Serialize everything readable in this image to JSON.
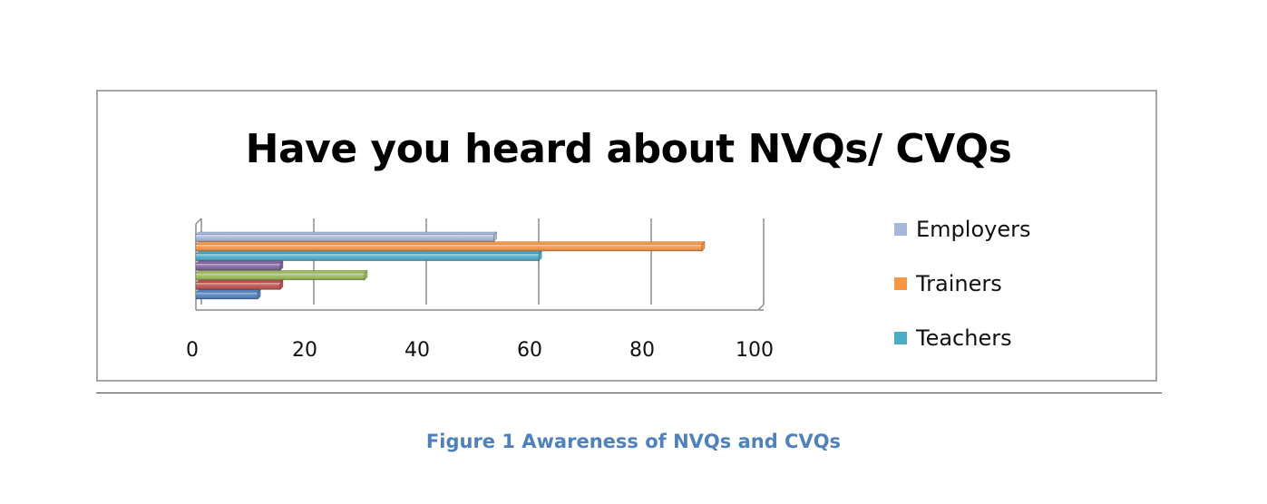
{
  "chart_data": {
    "type": "bar",
    "orientation": "horizontal",
    "style": "3d-clustered",
    "title": "Have you heard about NVQs/ CVQs",
    "xlim": [
      0,
      100
    ],
    "x_ticks": [
      "0",
      "20",
      "40",
      "60",
      "80",
      "100"
    ],
    "grid": true,
    "legend_position": "right",
    "series": [
      {
        "name": "",
        "value": 11,
        "color": "#4f81bd"
      },
      {
        "name": "",
        "value": 15,
        "color": "#c0504d"
      },
      {
        "name": "",
        "value": 30,
        "color": "#9bbb59"
      },
      {
        "name": "",
        "value": 15,
        "color": "#8064a2"
      },
      {
        "name": "Teachers",
        "value": 61,
        "color": "#4bacc6"
      },
      {
        "name": "Trainers",
        "value": 90,
        "color": "#f79646"
      },
      {
        "name": "Employers",
        "value": 53,
        "color": "#a5b8db"
      }
    ],
    "legend": [
      {
        "label": "Employers",
        "color": "#a5b8db"
      },
      {
        "label": "Trainers",
        "color": "#f79646"
      },
      {
        "label": "Teachers",
        "color": "#4bacc6"
      }
    ]
  },
  "caption": "Figure 1 Awareness of NVQs and CVQs"
}
